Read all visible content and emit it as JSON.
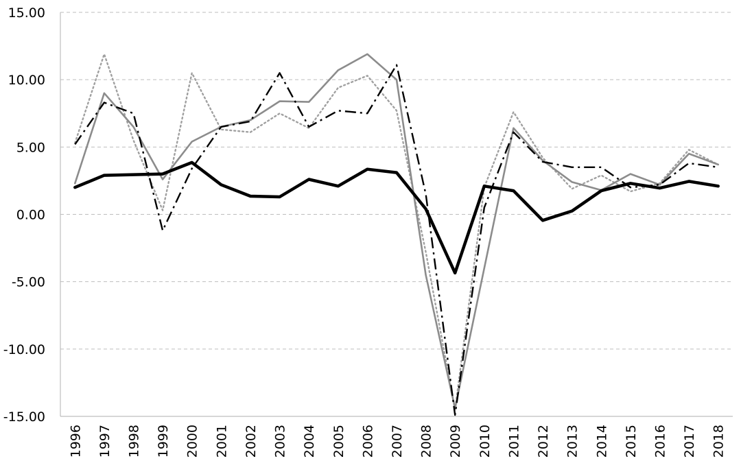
{
  "chart_data": {
    "type": "line",
    "title": "",
    "xlabel": "",
    "ylabel": "",
    "ylim": [
      -15,
      15
    ],
    "yticks": [
      -15,
      -10,
      -5,
      0,
      5,
      10,
      15
    ],
    "ytick_labels": [
      "-15.00",
      "-10.00",
      "-5.00",
      "0.00",
      "5.00",
      "10.00",
      "15.00"
    ],
    "grid": true,
    "legend": "none",
    "categories": [
      "1996",
      "1997",
      "1998",
      "1999",
      "2000",
      "2001",
      "2002",
      "2003",
      "2004",
      "2005",
      "2006",
      "2007",
      "2008",
      "2009",
      "2010",
      "2011",
      "2012",
      "2013",
      "2014",
      "2015",
      "2016",
      "2017",
      "2018"
    ],
    "series": [
      {
        "style": "solid-thick",
        "color": "#000000",
        "values": [
          2.0,
          2.9,
          2.95,
          3.0,
          3.85,
          2.2,
          1.35,
          1.3,
          2.6,
          2.1,
          3.35,
          3.1,
          0.4,
          -4.35,
          2.1,
          1.75,
          -0.45,
          0.25,
          1.75,
          2.3,
          1.95,
          2.45,
          2.1
        ]
      },
      {
        "style": "solid",
        "color": "#8c8c8c",
        "values": [
          2.3,
          9.0,
          6.5,
          2.6,
          5.4,
          6.5,
          7.0,
          8.4,
          8.35,
          10.7,
          11.9,
          10.0,
          -4.5,
          -14.4,
          -4.0,
          6.4,
          4.0,
          2.4,
          1.8,
          3.0,
          2.2,
          4.5,
          3.7
        ]
      },
      {
        "style": "dotted",
        "color": "#a0a0a0",
        "values": [
          5.3,
          11.9,
          5.5,
          0.3,
          10.5,
          6.3,
          6.1,
          7.5,
          6.4,
          9.4,
          10.3,
          7.7,
          -2.8,
          -14.5,
          2.0,
          7.6,
          4.2,
          1.9,
          2.9,
          1.7,
          2.3,
          4.8,
          3.7
        ]
      },
      {
        "style": "dash-dot",
        "color": "#000000",
        "values": [
          5.2,
          8.3,
          7.5,
          -1.2,
          3.4,
          6.5,
          6.9,
          10.5,
          6.5,
          7.7,
          7.5,
          11.1,
          1.5,
          -14.9,
          0.5,
          6.1,
          3.9,
          3.5,
          3.5,
          2.0,
          2.2,
          3.8,
          3.5
        ]
      }
    ]
  }
}
